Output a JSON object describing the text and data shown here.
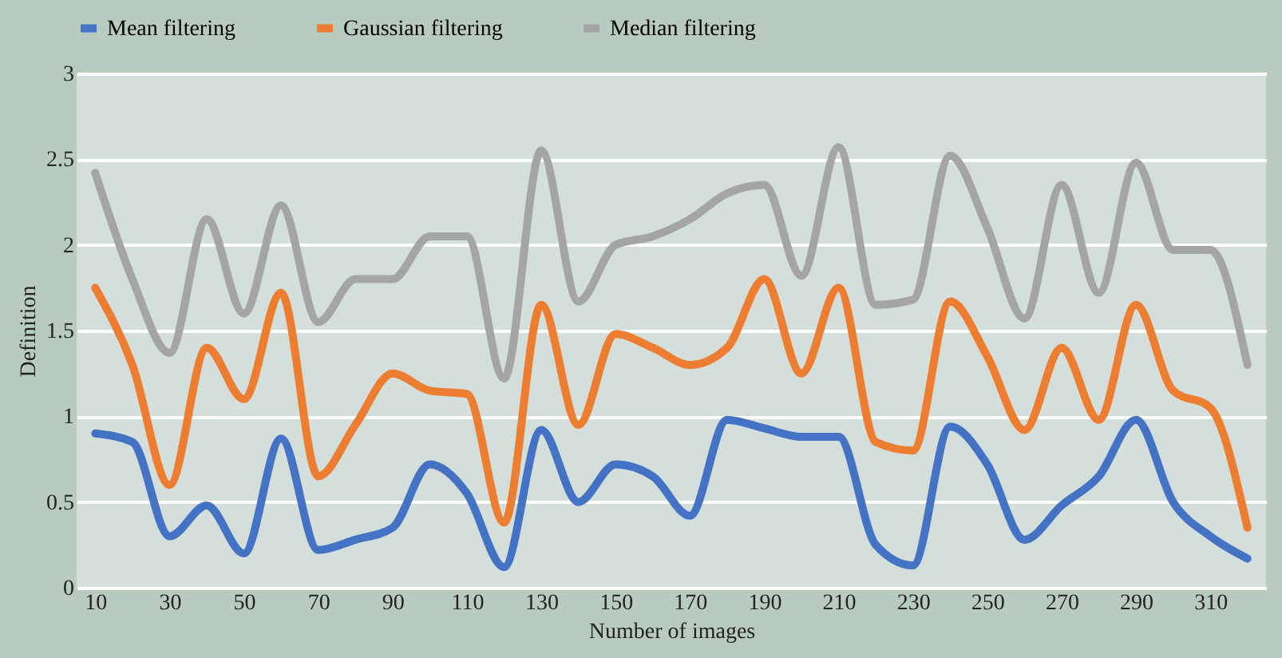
{
  "chart_data": {
    "type": "line",
    "xlabel": "Number of images",
    "ylabel": "Definition",
    "categories": [
      "10",
      null,
      "30",
      null,
      "50",
      null,
      "70",
      null,
      "90",
      null,
      "110",
      null,
      "130",
      null,
      "150",
      null,
      "170",
      null,
      "190",
      null,
      "210",
      null,
      "230",
      null,
      "250",
      null,
      "270",
      null,
      "290",
      null,
      "310",
      null
    ],
    "series": [
      {
        "name": "Mean filtering",
        "color": "#4472c4",
        "values": [
          0.9,
          0.85,
          0.3,
          0.48,
          0.2,
          0.87,
          0.22,
          0.28,
          0.35,
          0.72,
          0.55,
          0.12,
          0.92,
          0.5,
          0.72,
          0.65,
          0.42,
          0.98,
          0.93,
          0.88,
          0.88,
          0.25,
          0.13,
          0.94,
          0.72,
          0.28,
          0.48,
          0.65,
          0.98,
          0.5,
          0.3,
          0.17
        ]
      },
      {
        "name": "Gaussian filtering",
        "color": "#ed7d31",
        "values": [
          1.75,
          1.3,
          0.6,
          1.4,
          1.1,
          1.72,
          0.65,
          0.95,
          1.25,
          1.15,
          1.13,
          0.38,
          1.65,
          0.95,
          1.48,
          1.4,
          1.3,
          1.4,
          1.8,
          1.25,
          1.75,
          0.85,
          0.8,
          1.67,
          1.35,
          0.92,
          1.4,
          0.98,
          1.65,
          1.15,
          1.05,
          0.35
        ]
      },
      {
        "name": "Median filtering",
        "color": "#a5a5a5",
        "values": [
          2.42,
          1.8,
          1.37,
          2.15,
          1.6,
          2.23,
          1.55,
          1.8,
          1.8,
          2.05,
          2.05,
          1.22,
          2.55,
          1.67,
          2.0,
          2.05,
          2.15,
          2.3,
          2.35,
          1.82,
          2.57,
          1.65,
          1.68,
          2.52,
          2.1,
          1.57,
          2.35,
          1.72,
          2.48,
          1.97,
          1.97,
          1.3
        ]
      }
    ],
    "ylim": [
      0,
      3
    ],
    "yticks": [
      0,
      0.5,
      1,
      1.5,
      2,
      2.5,
      3
    ],
    "grid": "y",
    "legend": "top",
    "line_style": "solid",
    "marker": "none"
  }
}
